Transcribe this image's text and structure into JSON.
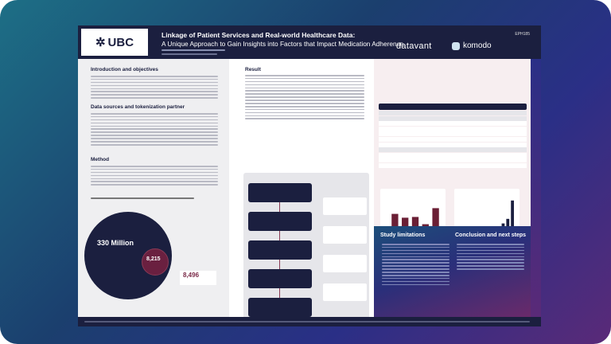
{
  "header": {
    "logo": "UBC",
    "title": "Linkage of Patient Services and Real-world Healthcare Data:",
    "subtitle": "A Unique Approach to Gain Insights into Factors that Impact Medication Adherence",
    "poster_code": "EPH185",
    "partner_logos": [
      "datavant",
      "komodo"
    ]
  },
  "sections": {
    "intro": "Introduction and objectives",
    "data_sources": "Data sources and tokenization partner",
    "method": "Method",
    "result": "Result",
    "limitations": "Study limitations",
    "conclusion": "Conclusion and next steps"
  },
  "figure1": {
    "total": "330 Million",
    "overlap": "8,215",
    "partner": "8,496"
  },
  "chart_data": [
    {
      "type": "bar",
      "values": [
        0.55,
        0.45,
        0.47,
        0.28,
        0.7
      ],
      "color": "#6a1f35"
    },
    {
      "type": "bar",
      "values": [
        0.02,
        0.03,
        0.05,
        0.07,
        0.09,
        0.11,
        0.14,
        0.18,
        0.3,
        0.42,
        0.9
      ],
      "color": "#1b1f3f"
    }
  ],
  "colors": {
    "navy": "#1b1f3f",
    "maroon": "#6a1f35"
  }
}
